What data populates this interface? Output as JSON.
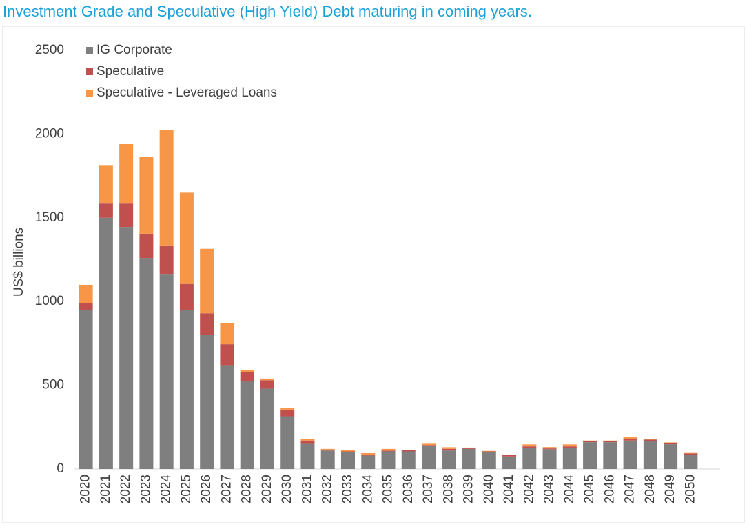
{
  "chart_data": {
    "type": "bar",
    "stacked": true,
    "title": "Investment Grade and Speculative (High Yield) Debt maturing in coming years.",
    "ylabel": "US$ billions",
    "categories": [
      "2020",
      "2021",
      "2022",
      "2023",
      "2024",
      "2025",
      "2026",
      "2027",
      "2028",
      "2029",
      "2030",
      "2031",
      "2032",
      "2033",
      "2034",
      "2035",
      "2036",
      "2037",
      "2038",
      "2039",
      "2040",
      "2041",
      "2042",
      "2043",
      "2044",
      "2045",
      "2046",
      "2047",
      "2048",
      "2049",
      "2050"
    ],
    "series": [
      {
        "name": "IG Corporate",
        "color": "#7f7f7f",
        "values": [
          950,
          1500,
          1445,
          1260,
          1165,
          950,
          800,
          620,
          525,
          480,
          315,
          150,
          110,
          100,
          80,
          105,
          105,
          140,
          110,
          120,
          100,
          75,
          125,
          118,
          125,
          160,
          160,
          170,
          168,
          148,
          85
        ]
      },
      {
        "name": "Speculative",
        "color": "#c0504d",
        "values": [
          40,
          85,
          140,
          145,
          170,
          155,
          130,
          125,
          55,
          50,
          40,
          20,
          5,
          5,
          5,
          5,
          8,
          3,
          10,
          5,
          5,
          8,
          10,
          5,
          10,
          5,
          5,
          10,
          8,
          8,
          8
        ]
      },
      {
        "name": "Speculative - Leveraged Loans",
        "color": "#f79646",
        "values": [
          110,
          230,
          355,
          460,
          690,
          545,
          385,
          125,
          10,
          10,
          10,
          10,
          5,
          10,
          10,
          10,
          2,
          8,
          10,
          3,
          3,
          3,
          12,
          8,
          12,
          5,
          5,
          12,
          3,
          3,
          3
        ]
      }
    ],
    "ylim": [
      0,
      2500
    ],
    "yticks": [
      0,
      500,
      1000,
      1500,
      2000,
      2500
    ],
    "grid": false
  }
}
